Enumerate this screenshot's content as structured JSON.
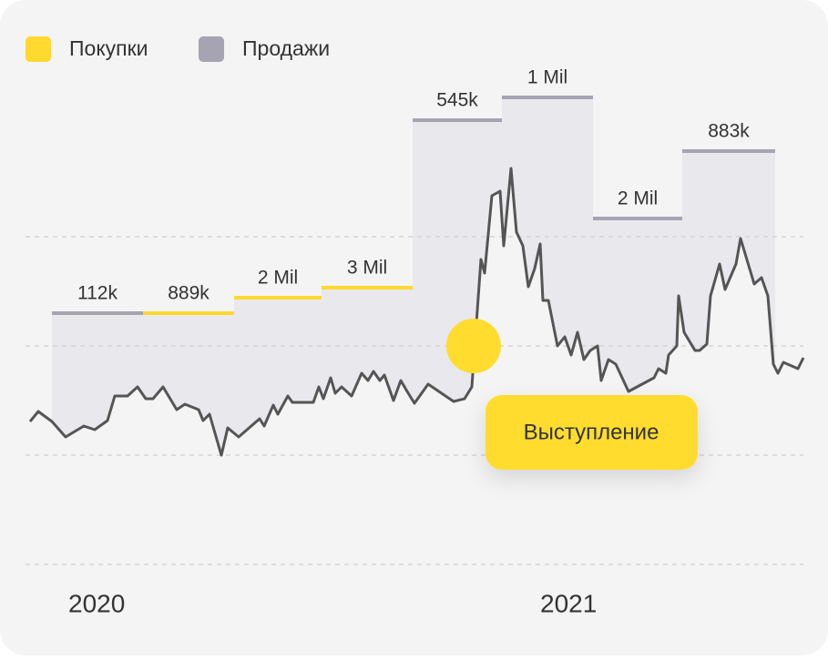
{
  "legend": [
    {
      "label": "Покупки",
      "color": "#ffd92e"
    },
    {
      "label": "Продажи",
      "color": "#a6a3b3"
    }
  ],
  "periods": [
    {
      "label": "112k",
      "color": "#a6a3b3"
    },
    {
      "label": "889k",
      "color": "#ffd92e"
    },
    {
      "label": "2 Mil",
      "color": "#ffd92e"
    },
    {
      "label": "3 Mil",
      "color": "#ffd92e"
    },
    {
      "label": "545k",
      "color": "#a6a3b3"
    },
    {
      "label": "1 Mil",
      "color": "#a6a3b3"
    },
    {
      "label": "2 Mil",
      "color": "#a6a3b3"
    },
    {
      "label": "883k",
      "color": "#a6a3b3"
    }
  ],
  "event": {
    "label": "Выступление",
    "color": "#ffdc2e"
  },
  "years": [
    "2020",
    "2021"
  ]
}
